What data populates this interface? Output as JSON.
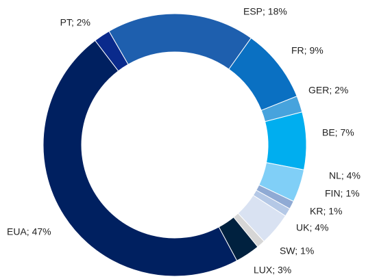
{
  "chart_data": {
    "type": "donut",
    "labels": [
      "ESP; 18%",
      "FR; 9%",
      "GER; 2%",
      "BE; 7%",
      "NL; 4%",
      "FIN; 1%",
      "KR; 1%",
      "UK; 4%",
      "SW; 1%",
      "LUX; 3%",
      "EUA; 47%",
      "PT; 2%"
    ],
    "values": [
      18,
      9,
      2,
      7,
      4,
      1,
      1,
      4,
      1,
      3,
      47,
      2
    ],
    "colors": [
      "#1e5fae",
      "#0a70c2",
      "#47a3dd",
      "#00aeef",
      "#80cff7",
      "#8faad4",
      "#b4c8e6",
      "#d9e2f2",
      "#d6d6d6",
      "#00213f",
      "#002060",
      "#0a2a8c"
    ]
  }
}
